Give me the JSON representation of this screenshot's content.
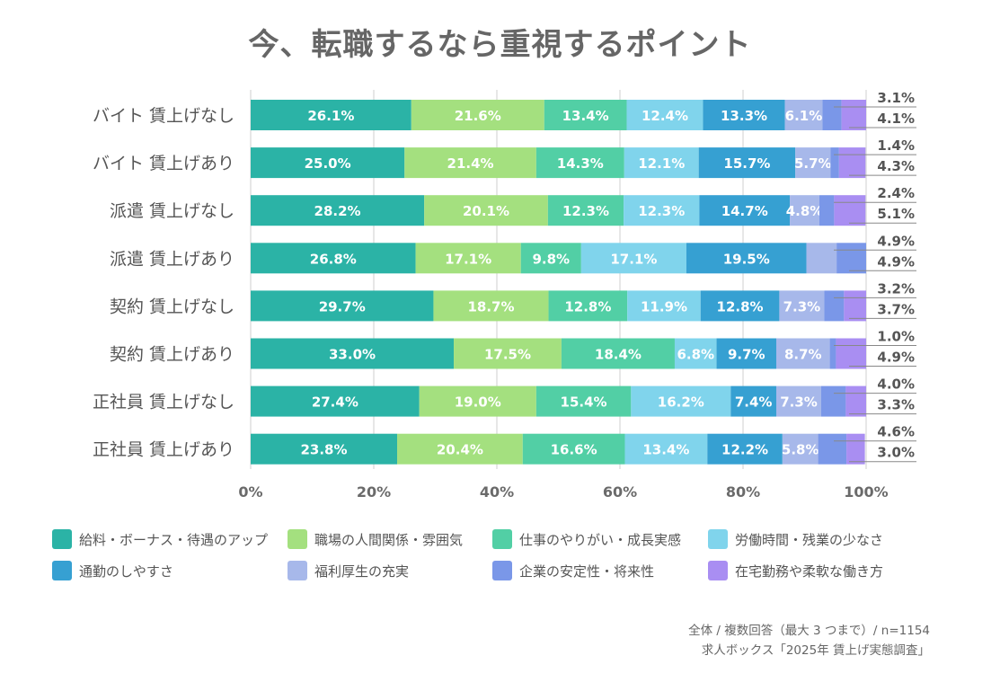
{
  "chart_data": {
    "type": "bar",
    "orientation": "horizontal",
    "stacked": true,
    "title": "今、転職するなら重視するポイント",
    "xlabel": "",
    "ylabel": "",
    "xlim": [
      0,
      100
    ],
    "x_ticks": [
      "0%",
      "20%",
      "40%",
      "60%",
      "80%",
      "100%"
    ],
    "grid": true,
    "legend_position": "bottom",
    "categories": [
      "バイト 賃上げなし",
      "バイト 賃上げあり",
      "派遣 賃上げなし",
      "派遣 賃上げあり",
      "契約 賃上げなし",
      "契約 賃上げあり",
      "正社員 賃上げなし",
      "正社員 賃上げあり"
    ],
    "series": [
      {
        "name": "給料・ボーナス・待遇のアップ",
        "color": "#2bb3a6",
        "values": [
          26.1,
          25.0,
          28.2,
          26.8,
          29.7,
          33.0,
          27.4,
          23.8
        ],
        "labels": [
          "26.1%",
          "25.0%",
          "28.2%",
          "26.8%",
          "29.7%",
          "33.0%",
          "27.4%",
          "23.8%"
        ]
      },
      {
        "name": "職場の人間関係・雰囲気",
        "color": "#a4e07f",
        "values": [
          21.6,
          21.4,
          20.1,
          17.1,
          18.7,
          17.5,
          19.0,
          20.4
        ],
        "labels": [
          "21.6%",
          "21.4%",
          "20.1%",
          "17.1%",
          "18.7%",
          "17.5%",
          "19.0%",
          "20.4%"
        ]
      },
      {
        "name": "仕事のやりがい・成長実感",
        "color": "#52cfa5",
        "values": [
          13.4,
          14.3,
          12.3,
          9.8,
          12.8,
          18.4,
          15.4,
          16.6
        ],
        "labels": [
          "13.4%",
          "14.3%",
          "12.3%",
          "9.8%",
          "12.8%",
          "18.4%",
          "15.4%",
          "16.6%"
        ]
      },
      {
        "name": "労働時間・残業の少なさ",
        "color": "#80d4ec",
        "values": [
          12.4,
          12.1,
          12.3,
          17.1,
          11.9,
          6.8,
          16.2,
          13.4
        ],
        "labels": [
          "12.4%",
          "12.1%",
          "12.3%",
          "17.1%",
          "11.9%",
          "6.8%",
          "16.2%",
          "13.4%"
        ]
      },
      {
        "name": "通勤のしやすさ",
        "color": "#36a0d2",
        "values": [
          13.3,
          15.7,
          14.7,
          19.5,
          12.8,
          9.7,
          7.4,
          12.2
        ],
        "labels": [
          "13.3%",
          "15.7%",
          "14.7%",
          "19.5%",
          "12.8%",
          "9.7%",
          "7.4%",
          "12.2%"
        ]
      },
      {
        "name": "福利厚生の充実",
        "color": "#a7b8ea",
        "values": [
          6.1,
          5.7,
          4.8,
          4.9,
          7.3,
          8.7,
          7.3,
          5.8
        ],
        "labels": [
          "6.1%",
          "5.7%",
          "4.8%",
          "",
          "7.3%",
          "8.7%",
          "7.3%",
          "5.8%"
        ]
      },
      {
        "name": "企業の安定性・将来性",
        "color": "#7a97e8",
        "values": [
          3.1,
          1.4,
          2.4,
          4.9,
          3.2,
          1.0,
          4.0,
          4.6
        ],
        "labels": [
          "3.1%",
          "1.4%",
          "2.4%",
          "4.9%",
          "3.2%",
          "1.0%",
          "4.0%",
          "4.6%"
        ]
      },
      {
        "name": "在宅勤務や柔軟な働き方",
        "color": "#a98ef2",
        "values": [
          4.1,
          4.3,
          5.1,
          4.9,
          3.7,
          4.9,
          3.3,
          3.0
        ],
        "labels": [
          "4.1%",
          "4.3%",
          "5.1%",
          "4.9%",
          "3.7%",
          "4.9%",
          "3.3%",
          "3.0%"
        ]
      }
    ]
  },
  "footnotes": {
    "line1": "全体 / 複数回答（最大 3 つまで）/ n=1154",
    "line2": "求人ボックス「2025年 賃上げ実態調査」"
  }
}
